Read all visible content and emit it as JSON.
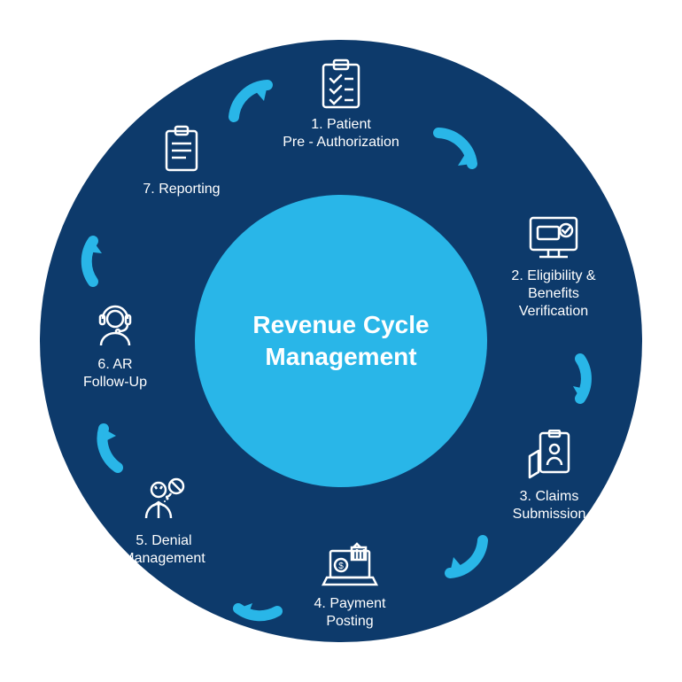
{
  "diagram": {
    "type": "circular-flow",
    "center_title": "Revenue Cycle Management",
    "center_title_fontsize": 28,
    "outer_circle_color": "#0d3a6b",
    "inner_circle_color": "#29b6e8",
    "arrow_color": "#29b6e8",
    "text_color": "#ffffff",
    "icon_stroke_color": "#ffffff",
    "label_fontsize": 16,
    "outer_diameter": 680,
    "inner_diameter": 330,
    "canvas_size": 770,
    "steps": [
      {
        "n": 1,
        "label": "1. Patient\nPre - Authorization",
        "icon": "checklist"
      },
      {
        "n": 2,
        "label": "2. Eligibility &\nBenefits\nVerification",
        "icon": "monitor-check"
      },
      {
        "n": 3,
        "label": "3. Claims\nSubmission",
        "icon": "hand-form"
      },
      {
        "n": 4,
        "label": "4. Payment\nPosting",
        "icon": "laptop-money"
      },
      {
        "n": 5,
        "label": "5. Denial\nManagement",
        "icon": "person-denied"
      },
      {
        "n": 6,
        "label": "6. AR\nFollow-Up",
        "icon": "headset-person"
      },
      {
        "n": 7,
        "label": "7. Reporting",
        "icon": "report-clipboard"
      }
    ]
  }
}
